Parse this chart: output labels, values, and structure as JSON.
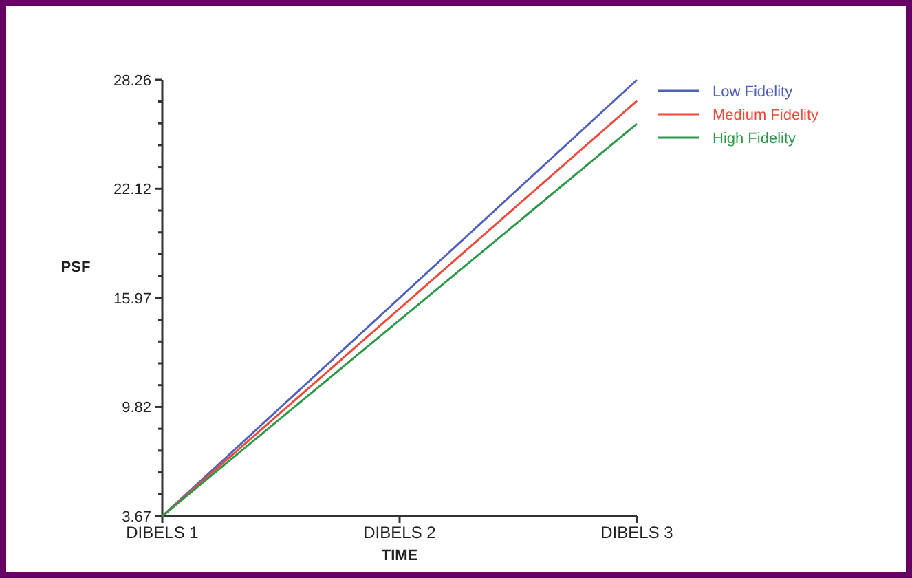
{
  "chart_data": {
    "type": "line",
    "xlabel": "TIME",
    "ylabel": "PSF",
    "categories": [
      "DIBELS 1",
      "DIBELS 2",
      "DIBELS 3"
    ],
    "series": [
      {
        "name": "Low Fidelity",
        "color": "#5060c0",
        "values": [
          3.67,
          15.97,
          28.26
        ]
      },
      {
        "name": "Medium Fidelity",
        "color": "#f04a3a",
        "values": [
          3.67,
          15.37,
          27.07
        ]
      },
      {
        "name": "High Fidelity",
        "color": "#2a9a48",
        "values": [
          3.67,
          14.72,
          25.78
        ]
      }
    ],
    "ylim": [
      3.67,
      28.26
    ],
    "yticks": [
      3.67,
      {
        "value": 4.9,
        "label": null
      },
      {
        "value": 6.13,
        "label": null
      },
      {
        "value": 7.36,
        "label": null
      },
      {
        "value": 8.59,
        "label": null
      },
      9.82,
      {
        "value": 11.05,
        "label": null
      },
      {
        "value": 12.28,
        "label": null
      },
      {
        "value": 13.51,
        "label": null
      },
      {
        "value": 14.74,
        "label": null
      },
      15.97,
      {
        "value": 17.2,
        "label": null
      },
      {
        "value": 18.43,
        "label": null
      },
      {
        "value": 19.66,
        "label": null
      },
      {
        "value": 20.89,
        "label": null
      },
      22.12,
      {
        "value": 23.35,
        "label": null
      },
      {
        "value": 24.58,
        "label": null
      },
      {
        "value": 25.81,
        "label": null
      },
      {
        "value": 27.04,
        "label": null
      },
      28.26
    ],
    "legend": "top right",
    "grid": false,
    "marker": "none",
    "line_style": "solid"
  }
}
